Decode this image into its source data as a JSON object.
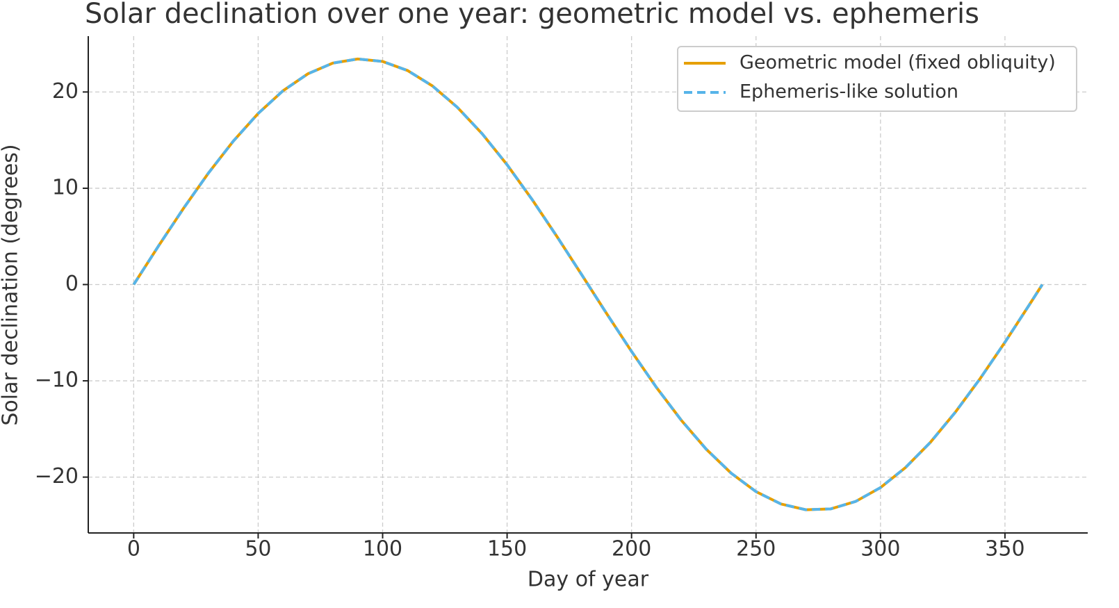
{
  "chart_data": {
    "type": "line",
    "title": "Solar declination over one year: geometric model vs. ephemeris",
    "x_label": "Day of year",
    "y_label": "Solar declination (degrees)",
    "x": [
      0,
      10,
      20,
      30,
      40,
      50,
      60,
      70,
      80,
      90,
      100,
      110,
      120,
      130,
      140,
      150,
      160,
      170,
      180,
      190,
      200,
      210,
      220,
      230,
      240,
      250,
      260,
      270,
      280,
      290,
      300,
      310,
      320,
      330,
      340,
      350,
      360,
      365
    ],
    "series": [
      {
        "name": "Geometric model (fixed obliquity)",
        "color": "#E69F00",
        "dash": false,
        "values": [
          0,
          4.02,
          7.91,
          11.57,
          14.89,
          17.77,
          20.13,
          21.89,
          23.0,
          23.43,
          23.17,
          22.23,
          20.63,
          18.41,
          15.66,
          12.44,
          8.85,
          5.0,
          1.01,
          -3.02,
          -6.95,
          -10.69,
          -14.1,
          -17.1,
          -19.59,
          -21.51,
          -22.79,
          -23.39,
          -23.3,
          -22.53,
          -21.09,
          -19.02,
          -16.4,
          -13.28,
          -9.78,
          -5.99,
          -2.02,
          0
        ]
      },
      {
        "name": "Ephemeris-like solution",
        "color": "#56B4E9",
        "dash": true,
        "values": [
          0,
          4.02,
          7.91,
          11.57,
          14.89,
          17.77,
          20.13,
          21.89,
          23.0,
          23.43,
          23.17,
          22.23,
          20.63,
          18.41,
          15.66,
          12.44,
          8.85,
          5.0,
          1.01,
          -3.02,
          -6.95,
          -10.69,
          -14.1,
          -17.1,
          -19.59,
          -21.51,
          -22.79,
          -23.39,
          -23.3,
          -22.53,
          -21.09,
          -19.02,
          -16.4,
          -13.28,
          -9.78,
          -5.99,
          -2.02,
          0
        ]
      }
    ],
    "xlim": [
      -18.25,
      383.25
    ],
    "xticks": [
      0,
      50,
      100,
      150,
      200,
      250,
      300,
      350
    ],
    "ylim": [
      -25.8,
      25.8
    ],
    "yticks": [
      {
        "value": -20,
        "label": "−20"
      },
      {
        "value": -10,
        "label": "−10"
      },
      0,
      10,
      20
    ],
    "grid": true,
    "legend": "upper right"
  }
}
